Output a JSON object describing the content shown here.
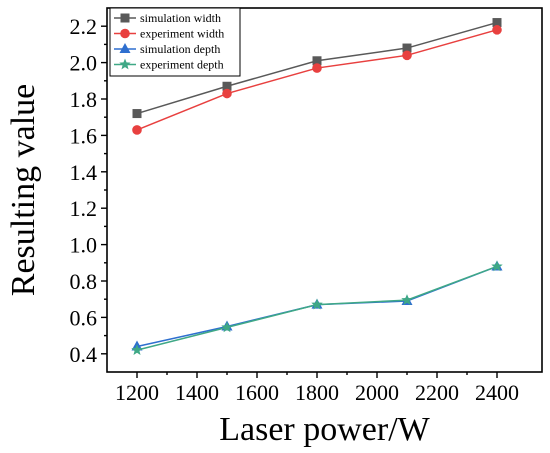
{
  "chart_data": {
    "type": "line",
    "xlabel": "Laser power/W",
    "ylabel": "Resulting value",
    "xlim": [
      1100,
      2550
    ],
    "ylim": [
      0.3,
      2.3
    ],
    "xticks": [
      1200,
      1400,
      1600,
      1800,
      2000,
      2200,
      2400
    ],
    "yticks": [
      0.4,
      0.6,
      0.8,
      1.0,
      1.2,
      1.4,
      1.6,
      1.8,
      2.0,
      2.2
    ],
    "xtick_labels": [
      "1200",
      "1400",
      "1600",
      "1800",
      "2000",
      "2200",
      "2400"
    ],
    "ytick_labels": [
      "0.4",
      "0.6",
      "0.8",
      "1.0",
      "1.2",
      "1.4",
      "1.6",
      "1.8",
      "2.0",
      "2.2"
    ],
    "legend_position": "top-left",
    "grid": false,
    "x": [
      1200,
      1500,
      1800,
      2100,
      2400
    ],
    "series": [
      {
        "name": "simulation width",
        "values": [
          1.72,
          1.87,
          2.01,
          2.08,
          2.22
        ],
        "color": "#595959",
        "marker": "square"
      },
      {
        "name": "experiment width",
        "values": [
          1.63,
          1.83,
          1.97,
          2.04,
          2.18
        ],
        "color": "#e8403f",
        "marker": "circle"
      },
      {
        "name": "simulation depth",
        "values": [
          0.44,
          0.55,
          0.67,
          0.69,
          0.88
        ],
        "color": "#2e6fcf",
        "marker": "triangle"
      },
      {
        "name": "experiment depth",
        "values": [
          0.42,
          0.545,
          0.67,
          0.695,
          0.88
        ],
        "color": "#3fa886",
        "marker": "star"
      }
    ]
  }
}
